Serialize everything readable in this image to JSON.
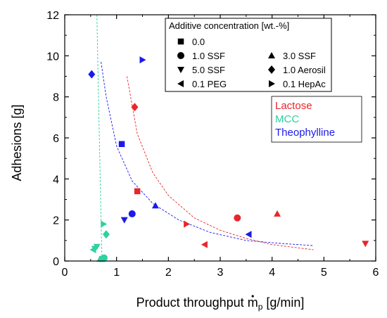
{
  "chart_data": {
    "type": "scatter",
    "xlabel_main": "Product throughput ",
    "xlabel_symbol": "m",
    "xlabel_sub": "p",
    "xlabel_unit": " [g/min]",
    "ylabel": "Adhesions [g]",
    "xlim": [
      0,
      6
    ],
    "ylim": [
      0,
      12
    ],
    "xticks": [
      "0",
      "1",
      "2",
      "3",
      "4",
      "5",
      "6"
    ],
    "yticks": [
      "0",
      "2",
      "4",
      "6",
      "8",
      "10",
      "12"
    ],
    "grid": false,
    "legend_title": "Additive concentration [wt.-%]",
    "legend_markers": [
      {
        "label": "0.0",
        "marker": "square"
      },
      {
        "label": "1.0 SSF",
        "marker": "circle"
      },
      {
        "label": "3.0 SSF",
        "marker": "triangle-up"
      },
      {
        "label": "5.0 SSF",
        "marker": "triangle-down"
      },
      {
        "label": "1.0 Aerosil",
        "marker": "diamond"
      },
      {
        "label": "0.1 PEG",
        "marker": "triangle-left"
      },
      {
        "label": "0.1 HepAc",
        "marker": "triangle-right"
      }
    ],
    "legend_materials": [
      {
        "label": "Lactose",
        "color": "#e8262b"
      },
      {
        "label": "MCC",
        "color": "#2ed1a0"
      },
      {
        "label": "Theophylline",
        "color": "#1a1aee"
      }
    ],
    "series": [
      {
        "name": "Lactose",
        "color": "#e8262b",
        "points": [
          {
            "x": 1.4,
            "y": 3.4,
            "marker": "square"
          },
          {
            "x": 3.33,
            "y": 2.1,
            "marker": "circle"
          },
          {
            "x": 4.1,
            "y": 2.3,
            "marker": "triangle-up"
          },
          {
            "x": 5.8,
            "y": 0.85,
            "marker": "triangle-down"
          },
          {
            "x": 1.35,
            "y": 7.5,
            "marker": "diamond"
          },
          {
            "x": 2.7,
            "y": 0.8,
            "marker": "triangle-left"
          },
          {
            "x": 2.35,
            "y": 1.8,
            "marker": "triangle-right"
          }
        ]
      },
      {
        "name": "MCC",
        "color": "#2ed1a0",
        "points": [
          {
            "x": 0.72,
            "y": 0.1,
            "marker": "square"
          },
          {
            "x": 0.76,
            "y": 0.15,
            "marker": "circle"
          },
          {
            "x": 0.68,
            "y": 0.1,
            "marker": "triangle-up"
          },
          {
            "x": 0.58,
            "y": 0.6,
            "marker": "triangle-down"
          },
          {
            "x": 0.62,
            "y": 0.7,
            "marker": "triangle-down"
          },
          {
            "x": 0.8,
            "y": 1.3,
            "marker": "diamond"
          },
          {
            "x": 0.55,
            "y": 0.55,
            "marker": "triangle-left"
          },
          {
            "x": 0.75,
            "y": 1.8,
            "marker": "triangle-right"
          }
        ]
      },
      {
        "name": "Theophylline",
        "color": "#1a1aee",
        "points": [
          {
            "x": 1.1,
            "y": 5.7,
            "marker": "square"
          },
          {
            "x": 1.3,
            "y": 2.3,
            "marker": "circle"
          },
          {
            "x": 1.75,
            "y": 2.7,
            "marker": "triangle-up"
          },
          {
            "x": 1.15,
            "y": 2.0,
            "marker": "triangle-down"
          },
          {
            "x": 0.52,
            "y": 9.1,
            "marker": "diamond"
          },
          {
            "x": 3.55,
            "y": 1.3,
            "marker": "triangle-left"
          },
          {
            "x": 1.5,
            "y": 9.8,
            "marker": "triangle-right"
          }
        ]
      }
    ],
    "fit_curves": [
      {
        "color": "#e8262b",
        "x": [
          1.2,
          1.4,
          1.7,
          2.0,
          2.5,
          3.0,
          3.5,
          4.0,
          4.8
        ],
        "y": [
          9.0,
          6.2,
          4.3,
          3.2,
          2.1,
          1.5,
          1.1,
          0.8,
          0.55
        ]
      },
      {
        "color": "#1a1aee",
        "x": [
          0.7,
          0.8,
          1.0,
          1.3,
          1.7,
          2.2,
          2.8,
          3.5,
          4.2,
          4.8
        ],
        "y": [
          9.7,
          8.0,
          5.6,
          3.9,
          2.8,
          2.0,
          1.4,
          1.0,
          0.85,
          0.75
        ]
      },
      {
        "color": "#2ed1a0",
        "x": [
          0.62,
          0.64,
          0.66,
          0.68,
          0.7,
          0.72
        ],
        "y": [
          12.0,
          9.5,
          7.0,
          4.5,
          2.0,
          0.0
        ]
      }
    ]
  }
}
